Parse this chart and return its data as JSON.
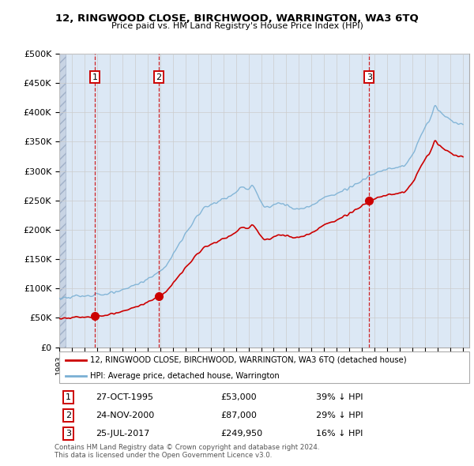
{
  "title1": "12, RINGWOOD CLOSE, BIRCHWOOD, WARRINGTON, WA3 6TQ",
  "title2": "Price paid vs. HM Land Registry's House Price Index (HPI)",
  "ylim": [
    0,
    500000
  ],
  "yticks": [
    0,
    50000,
    100000,
    150000,
    200000,
    250000,
    300000,
    350000,
    400000,
    450000,
    500000
  ],
  "ytick_labels": [
    "£0",
    "£50K",
    "£100K",
    "£150K",
    "£200K",
    "£250K",
    "£300K",
    "£350K",
    "£400K",
    "£450K",
    "£500K"
  ],
  "xlim_start": 1993.0,
  "xlim_end": 2025.5,
  "sales": [
    {
      "year": 1995.82,
      "price": 53000,
      "label": "1"
    },
    {
      "year": 2000.9,
      "price": 87000,
      "label": "2"
    },
    {
      "year": 2017.56,
      "price": 249950,
      "label": "3"
    }
  ],
  "sale_color": "#cc0000",
  "hpi_color": "#7ab0d4",
  "legend_label_red": "12, RINGWOOD CLOSE, BIRCHWOOD, WARRINGTON, WA3 6TQ (detached house)",
  "legend_label_blue": "HPI: Average price, detached house, Warrington",
  "table_rows": [
    {
      "num": "1",
      "date": "27-OCT-1995",
      "price": "£53,000",
      "pct": "39% ↓ HPI"
    },
    {
      "num": "2",
      "date": "24-NOV-2000",
      "price": "£87,000",
      "pct": "29% ↓ HPI"
    },
    {
      "num": "3",
      "date": "25-JUL-2017",
      "price": "£249,950",
      "pct": "16% ↓ HPI"
    }
  ],
  "footer": "Contains HM Land Registry data © Crown copyright and database right 2024.\nThis data is licensed under the Open Government Licence v3.0.",
  "grid_color": "#cccccc",
  "bg_main_color": "#dce8f5",
  "bg_hatch_color": "#c8d4e4",
  "hatch_end_year": 1993.5
}
